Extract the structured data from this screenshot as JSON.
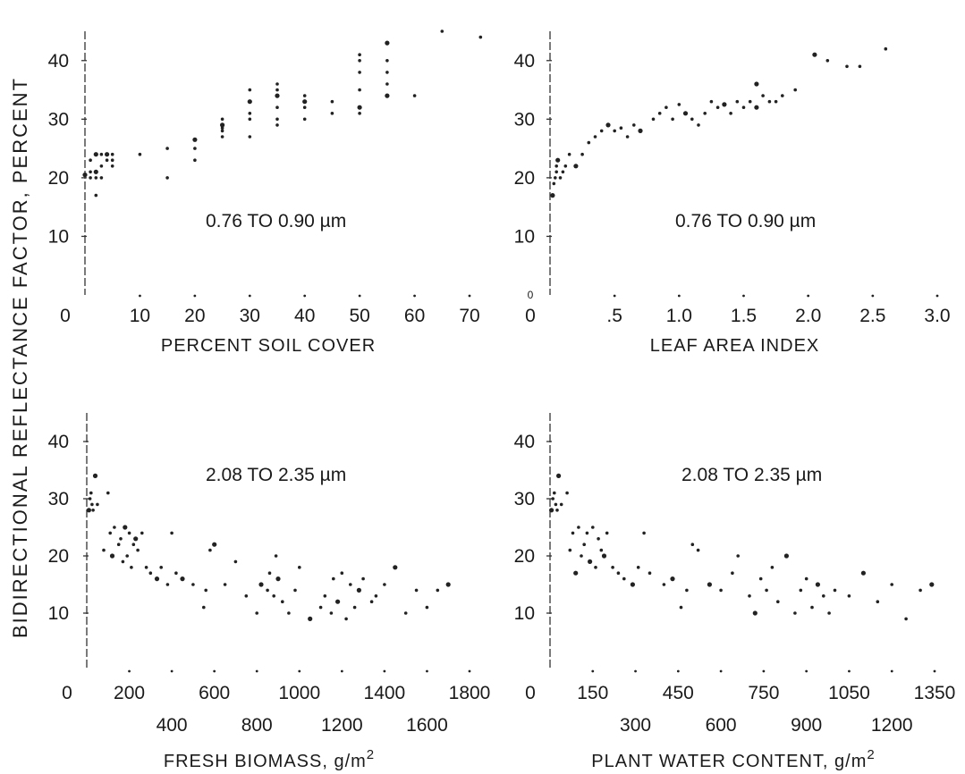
{
  "ylabel_full": "BIDIRECTIONAL   REFLECTANCE   FACTOR, PERCENT",
  "chart_data": [
    {
      "type": "scatter",
      "band": "0.76 TO 0.90 µm",
      "xlabel": "PERCENT SOIL COVER",
      "xlabel_sup": "",
      "ylim": [
        0,
        45
      ],
      "yticks": [
        10,
        20,
        30,
        40
      ],
      "y_zero_label": "",
      "xlim": [
        0,
        70
      ],
      "xtick_rows": [
        {
          "row": 0,
          "values": [
            0,
            10,
            20,
            30,
            40,
            50,
            60,
            70
          ],
          "labels": [
            "0",
            "10",
            "20",
            "30",
            "40",
            "50",
            "60",
            "70"
          ]
        }
      ],
      "points": [
        [
          0,
          20.5
        ],
        [
          1,
          20
        ],
        [
          1,
          21
        ],
        [
          2,
          20
        ],
        [
          2,
          17
        ],
        [
          2,
          21
        ],
        [
          3,
          20
        ],
        [
          3,
          22
        ],
        [
          3,
          24
        ],
        [
          4,
          23
        ],
        [
          4,
          24
        ],
        [
          5,
          22
        ],
        [
          5,
          23
        ],
        [
          5,
          24
        ],
        [
          1,
          23
        ],
        [
          2,
          24
        ],
        [
          10,
          24
        ],
        [
          15,
          20
        ],
        [
          15,
          25
        ],
        [
          20,
          25
        ],
        [
          20,
          26.5
        ],
        [
          20,
          23
        ],
        [
          25,
          27
        ],
        [
          25,
          28
        ],
        [
          25,
          28.5
        ],
        [
          25,
          29
        ],
        [
          25,
          30
        ],
        [
          30,
          27
        ],
        [
          30,
          30
        ],
        [
          30,
          31
        ],
        [
          30,
          33
        ],
        [
          30,
          35
        ],
        [
          35,
          29
        ],
        [
          35,
          30
        ],
        [
          35,
          32
        ],
        [
          35,
          34
        ],
        [
          35,
          35
        ],
        [
          35,
          36
        ],
        [
          40,
          30
        ],
        [
          40,
          32
        ],
        [
          40,
          33
        ],
        [
          40,
          34
        ],
        [
          45,
          31
        ],
        [
          45,
          33
        ],
        [
          50,
          31
        ],
        [
          50,
          32
        ],
        [
          50,
          35
        ],
        [
          50,
          38
        ],
        [
          50,
          40
        ],
        [
          50,
          41
        ],
        [
          55,
          34
        ],
        [
          55,
          36
        ],
        [
          55,
          38
        ],
        [
          55,
          40
        ],
        [
          60,
          34
        ],
        [
          55,
          43
        ],
        [
          65,
          45
        ],
        [
          72,
          44
        ]
      ]
    },
    {
      "type": "scatter",
      "band": "0.76 TO 0.90 µm",
      "xlabel": "LEAF AREA INDEX",
      "xlabel_sup": "",
      "ylim": [
        0,
        45
      ],
      "yticks": [
        10,
        20,
        30,
        40
      ],
      "y_zero_label": "0",
      "xlim": [
        0,
        3.0
      ],
      "xtick_rows": [
        {
          "row": 0,
          "values": [
            0,
            0.5,
            1.0,
            1.5,
            2.0,
            2.5,
            3.0
          ],
          "labels": [
            "0",
            ".5",
            "1.0",
            "1.5",
            "2.0",
            "2.5",
            "3.0"
          ]
        }
      ],
      "points": [
        [
          0.02,
          17
        ],
        [
          0.03,
          19
        ],
        [
          0.04,
          20
        ],
        [
          0.05,
          21
        ],
        [
          0.05,
          22
        ],
        [
          0.06,
          23
        ],
        [
          0.08,
          20
        ],
        [
          0.1,
          21
        ],
        [
          0.12,
          22
        ],
        [
          0.15,
          24
        ],
        [
          0.2,
          22
        ],
        [
          0.25,
          24
        ],
        [
          0.3,
          26
        ],
        [
          0.35,
          27
        ],
        [
          0.4,
          28
        ],
        [
          0.45,
          29
        ],
        [
          0.5,
          28
        ],
        [
          0.55,
          28.5
        ],
        [
          0.6,
          27
        ],
        [
          0.65,
          29
        ],
        [
          0.7,
          28
        ],
        [
          0.8,
          30
        ],
        [
          0.85,
          31
        ],
        [
          0.9,
          32
        ],
        [
          1.0,
          32.5
        ],
        [
          1.05,
          31
        ],
        [
          1.1,
          30
        ],
        [
          1.2,
          31
        ],
        [
          1.25,
          33
        ],
        [
          1.3,
          32
        ],
        [
          1.35,
          32.5
        ],
        [
          1.4,
          31
        ],
        [
          1.45,
          33
        ],
        [
          1.5,
          32
        ],
        [
          1.55,
          33
        ],
        [
          1.6,
          32
        ],
        [
          1.65,
          34
        ],
        [
          1.7,
          33
        ],
        [
          1.8,
          34
        ],
        [
          1.9,
          35
        ],
        [
          2.05,
          41
        ],
        [
          2.15,
          40
        ],
        [
          2.3,
          39
        ],
        [
          2.4,
          39
        ],
        [
          2.6,
          42
        ],
        [
          1.6,
          36
        ],
        [
          1.75,
          33
        ],
        [
          1.15,
          29
        ],
        [
          0.95,
          30
        ]
      ]
    },
    {
      "type": "scatter",
      "band": "2.08 TO 2.35 µm",
      "xlabel": "FRESH BIOMASS, g/m",
      "xlabel_sup": "2",
      "ylim": [
        0,
        45
      ],
      "yticks": [
        10,
        20,
        30,
        40
      ],
      "y_zero_label": "",
      "xlim": [
        0,
        1800
      ],
      "xtick_rows": [
        {
          "row": 0,
          "values": [
            0,
            200,
            600,
            1000,
            1400,
            1800
          ],
          "labels": [
            "0",
            "200",
            "600",
            "1000",
            "1400",
            "1800"
          ]
        },
        {
          "row": 1,
          "values": [
            400,
            800,
            1200,
            1600
          ],
          "labels": [
            "400",
            "800",
            "1200",
            "1600"
          ]
        }
      ],
      "points": [
        [
          10,
          28
        ],
        [
          15,
          30
        ],
        [
          20,
          31
        ],
        [
          25,
          29
        ],
        [
          30,
          28
        ],
        [
          40,
          34
        ],
        [
          50,
          29
        ],
        [
          80,
          21
        ],
        [
          100,
          31
        ],
        [
          110,
          24
        ],
        [
          120,
          20
        ],
        [
          130,
          25
        ],
        [
          150,
          22
        ],
        [
          160,
          23
        ],
        [
          170,
          19
        ],
        [
          180,
          25
        ],
        [
          190,
          20
        ],
        [
          200,
          24
        ],
        [
          210,
          18
        ],
        [
          220,
          22
        ],
        [
          230,
          23
        ],
        [
          240,
          21
        ],
        [
          260,
          24
        ],
        [
          280,
          18
        ],
        [
          300,
          17
        ],
        [
          330,
          16
        ],
        [
          350,
          18
        ],
        [
          380,
          15
        ],
        [
          400,
          24
        ],
        [
          420,
          17
        ],
        [
          450,
          16
        ],
        [
          500,
          15
        ],
        [
          550,
          11
        ],
        [
          560,
          14
        ],
        [
          580,
          21
        ],
        [
          600,
          22
        ],
        [
          650,
          15
        ],
        [
          700,
          19
        ],
        [
          750,
          13
        ],
        [
          800,
          10
        ],
        [
          820,
          15
        ],
        [
          850,
          14
        ],
        [
          860,
          17
        ],
        [
          880,
          13
        ],
        [
          890,
          20
        ],
        [
          900,
          16
        ],
        [
          920,
          12
        ],
        [
          950,
          10
        ],
        [
          980,
          14
        ],
        [
          1000,
          18
        ],
        [
          1050,
          9
        ],
        [
          1100,
          11
        ],
        [
          1120,
          13
        ],
        [
          1150,
          10
        ],
        [
          1160,
          16
        ],
        [
          1180,
          12
        ],
        [
          1200,
          17
        ],
        [
          1220,
          9
        ],
        [
          1240,
          15
        ],
        [
          1260,
          11
        ],
        [
          1280,
          14
        ],
        [
          1300,
          16
        ],
        [
          1340,
          12
        ],
        [
          1360,
          13
        ],
        [
          1400,
          15
        ],
        [
          1450,
          18
        ],
        [
          1500,
          10
        ],
        [
          1550,
          14
        ],
        [
          1600,
          11
        ],
        [
          1650,
          14
        ],
        [
          1700,
          15
        ]
      ]
    },
    {
      "type": "scatter",
      "band": "2.08 TO 2.35 µm",
      "xlabel": "PLANT WATER CONTENT, g/m",
      "xlabel_sup": "2",
      "ylim": [
        0,
        45
      ],
      "yticks": [
        10,
        20,
        30,
        40
      ],
      "y_zero_label": "",
      "xlim": [
        0,
        1350
      ],
      "xtick_rows": [
        {
          "row": 0,
          "values": [
            0,
            150,
            450,
            750,
            1050,
            1350
          ],
          "labels": [
            "0",
            "150",
            "450",
            "750",
            "1050",
            "1350"
          ]
        },
        {
          "row": 1,
          "values": [
            300,
            600,
            900,
            1200
          ],
          "labels": [
            "300",
            "600",
            "900",
            "1200"
          ]
        }
      ],
      "points": [
        [
          5,
          28
        ],
        [
          10,
          30
        ],
        [
          15,
          31
        ],
        [
          20,
          29
        ],
        [
          25,
          28
        ],
        [
          30,
          34
        ],
        [
          40,
          29
        ],
        [
          60,
          31
        ],
        [
          70,
          21
        ],
        [
          80,
          24
        ],
        [
          90,
          17
        ],
        [
          100,
          25
        ],
        [
          110,
          20
        ],
        [
          120,
          22
        ],
        [
          130,
          24
        ],
        [
          140,
          19
        ],
        [
          150,
          25
        ],
        [
          160,
          18
        ],
        [
          170,
          23
        ],
        [
          180,
          21
        ],
        [
          190,
          20
        ],
        [
          200,
          24
        ],
        [
          220,
          18
        ],
        [
          240,
          17
        ],
        [
          260,
          16
        ],
        [
          290,
          15
        ],
        [
          310,
          18
        ],
        [
          330,
          24
        ],
        [
          350,
          17
        ],
        [
          400,
          15
        ],
        [
          430,
          16
        ],
        [
          460,
          11
        ],
        [
          480,
          14
        ],
        [
          500,
          22
        ],
        [
          520,
          21
        ],
        [
          560,
          15
        ],
        [
          600,
          14
        ],
        [
          640,
          17
        ],
        [
          660,
          20
        ],
        [
          700,
          13
        ],
        [
          720,
          10
        ],
        [
          740,
          16
        ],
        [
          760,
          14
        ],
        [
          780,
          18
        ],
        [
          800,
          12
        ],
        [
          830,
          20
        ],
        [
          860,
          10
        ],
        [
          880,
          14
        ],
        [
          900,
          16
        ],
        [
          920,
          11
        ],
        [
          940,
          15
        ],
        [
          960,
          13
        ],
        [
          980,
          10
        ],
        [
          1000,
          14
        ],
        [
          1050,
          13
        ],
        [
          1100,
          17
        ],
        [
          1150,
          12
        ],
        [
          1200,
          15
        ],
        [
          1250,
          9
        ],
        [
          1300,
          14
        ],
        [
          1340,
          15
        ]
      ]
    }
  ]
}
